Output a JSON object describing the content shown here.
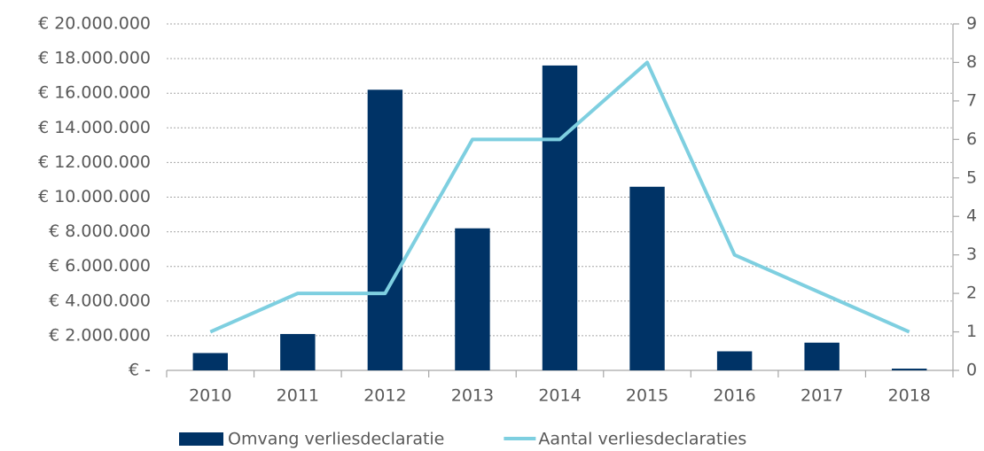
{
  "chart_data": {
    "type": "bar",
    "categories": [
      "2010",
      "2011",
      "2012",
      "2013",
      "2014",
      "2015",
      "2016",
      "2017",
      "2018"
    ],
    "series": [
      {
        "name": "Omvang verliesdeclaratie",
        "type": "bar",
        "color": "#003366",
        "values": [
          1000000,
          2100000,
          16200000,
          8200000,
          17600000,
          10600000,
          1100000,
          1600000,
          100000
        ]
      },
      {
        "name": "Aantal verliesdeclaraties",
        "type": "line",
        "axis": "y2",
        "color": "#7ecfe0",
        "values": [
          1,
          2,
          2,
          6,
          6,
          8,
          3,
          2,
          1
        ]
      }
    ],
    "ylim": [
      0,
      20000000
    ],
    "yticks": [
      {
        "value": 0,
        "label": "€ -"
      },
      {
        "value": 2000000,
        "label": "€ 2.000.000"
      },
      {
        "value": 4000000,
        "label": "€ 4.000.000"
      },
      {
        "value": 6000000,
        "label": "€ 6.000.000"
      },
      {
        "value": 8000000,
        "label": "€ 8.000.000"
      },
      {
        "value": 10000000,
        "label": "€ 10.000.000"
      },
      {
        "value": 12000000,
        "label": "€ 12.000.000"
      },
      {
        "value": 14000000,
        "label": "€ 14.000.000"
      },
      {
        "value": 16000000,
        "label": "€ 16.000.000"
      },
      {
        "value": 18000000,
        "label": "€ 18.000.000"
      },
      {
        "value": 20000000,
        "label": "€ 20.000.000"
      }
    ],
    "y2lim": [
      0,
      9
    ],
    "y2ticks": [
      0,
      1,
      2,
      3,
      4,
      5,
      6,
      7,
      8,
      9
    ],
    "grid": true,
    "legend": "bottom"
  }
}
